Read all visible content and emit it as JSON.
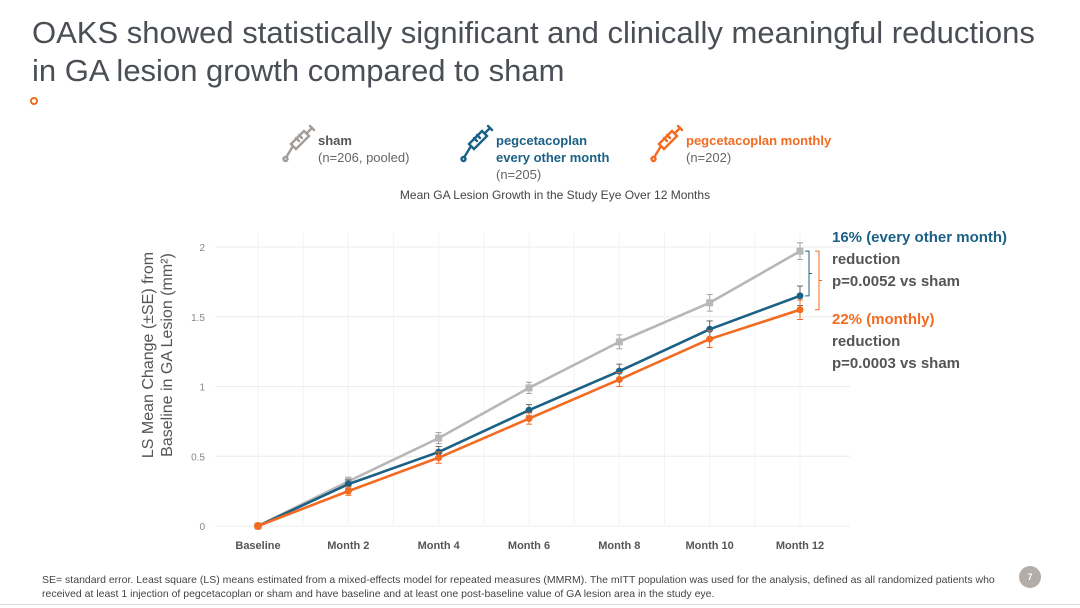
{
  "slide": {
    "title": "OAKS showed statistically significant and clinically meaningful reductions in GA lesion growth compared to sham",
    "page_number": "7",
    "footnote": "SE= standard error.  Least square (LS) means estimated from a mixed-effects model for repeated measures (MMRM). The mITT population was used for the analysis, defined as all randomized patients who received at least 1 injection of pegcetacoplan or sham and have baseline and at least one post-baseline value of GA lesion area in the study eye."
  },
  "colors": {
    "sham": "#b7b7b7",
    "every_other_month": "#1b6186",
    "monthly": "#f26b21",
    "rule_start": "#f26b21",
    "rule_end": "#c0245b",
    "grid": "#ececec",
    "error_bar": "#666666"
  },
  "legend": [
    {
      "icon": "syringe-icon",
      "name": "sham",
      "n": "(n=206, pooled)",
      "color_key": "sham",
      "label_color": "#555555"
    },
    {
      "icon": "syringe-icon",
      "name": "pegcetacoplan every other month",
      "name_lines": [
        "pegcetacoplan",
        "every other month"
      ],
      "n": "(n=205)",
      "color_key": "every_other_month",
      "label_color": "#1b6186"
    },
    {
      "icon": "syringe-icon",
      "name": "pegcetacoplan monthly",
      "name_lines": [
        "pegcetacoplan monthly"
      ],
      "n": "(n=202)",
      "color_key": "monthly",
      "label_color": "#f26b21"
    }
  ],
  "annotations": {
    "eom_pct": "16% (every other month)",
    "eom_line2": "reduction",
    "eom_p": "p=0.0052 vs sham",
    "monthly_pct": "22% (monthly)",
    "monthly_line2": "reduction",
    "monthly_p": "p=0.0003 vs sham"
  },
  "chart_data": {
    "type": "line",
    "title": "Mean GA Lesion Growth in the Study Eye Over 12 Months",
    "xlabel": "",
    "ylabel": "LS Mean Change (±SE) from Baseline in GA Lesion (mm²)",
    "ylabel_lines": [
      "LS Mean Change (±SE) from",
      "Baseline in GA Lesion (mm²)"
    ],
    "categories": [
      "Baseline",
      "Month 2",
      "Month 4",
      "Month 6",
      "Month 8",
      "Month 10",
      "Month 12"
    ],
    "ylim": [
      0,
      2.1
    ],
    "yticks": [
      0,
      0.5,
      1,
      1.5,
      2
    ],
    "ytick_labels": [
      "0",
      "0.5",
      "1",
      "1.5",
      "2"
    ],
    "grid": true,
    "legend_position": "top",
    "series": [
      {
        "name": "sham (n=206, pooled)",
        "key": "sham",
        "values": [
          0,
          0.32,
          0.63,
          0.99,
          1.32,
          1.6,
          1.97
        ],
        "se": [
          0,
          0.03,
          0.04,
          0.04,
          0.05,
          0.06,
          0.06
        ]
      },
      {
        "name": "pegcetacoplan every other month (n=205)",
        "key": "every_other_month",
        "values": [
          0,
          0.3,
          0.53,
          0.83,
          1.11,
          1.41,
          1.65
        ],
        "se": [
          0,
          0.03,
          0.04,
          0.04,
          0.05,
          0.06,
          0.07
        ]
      },
      {
        "name": "pegcetacoplan monthly (n=202)",
        "key": "monthly",
        "values": [
          0,
          0.25,
          0.49,
          0.77,
          1.05,
          1.34,
          1.55
        ],
        "se": [
          0,
          0.03,
          0.04,
          0.04,
          0.05,
          0.06,
          0.07
        ]
      }
    ],
    "annotations": [
      {
        "text": "16% (every other month) reduction p=0.0052 vs sham",
        "compares": [
          "sham",
          "every_other_month"
        ],
        "at": "Month 12"
      },
      {
        "text": "22% (monthly) reduction p=0.0003 vs sham",
        "compares": [
          "sham",
          "monthly"
        ],
        "at": "Month 12"
      }
    ]
  }
}
